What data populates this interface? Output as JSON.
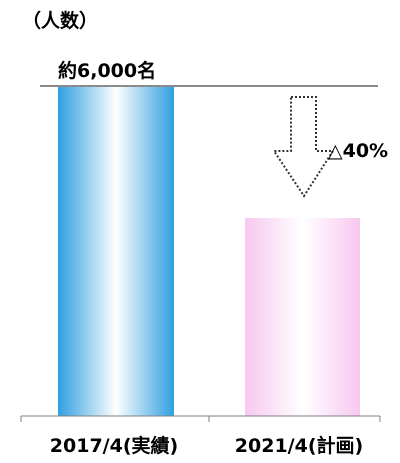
{
  "chart_data": {
    "type": "bar",
    "unit_label": "（人数）",
    "categories": [
      "2017/4(実績)",
      "2021/4(計画)"
    ],
    "values": [
      6000,
      3600
    ],
    "ylim": [
      0,
      6000
    ],
    "value_labels": [
      "約6,000名",
      ""
    ],
    "annotation": "△40%",
    "grid": false
  },
  "colors": {
    "bar_2017_edge": "#2f9fe0",
    "bar_2017_center": "#ffffff",
    "bar_2021_edge": "#f7c8f0",
    "bar_2021_center": "#ffffff",
    "reference_line": "#8a8a8a",
    "axis": "#7f7f7f",
    "arrow_outline": "#333333"
  }
}
